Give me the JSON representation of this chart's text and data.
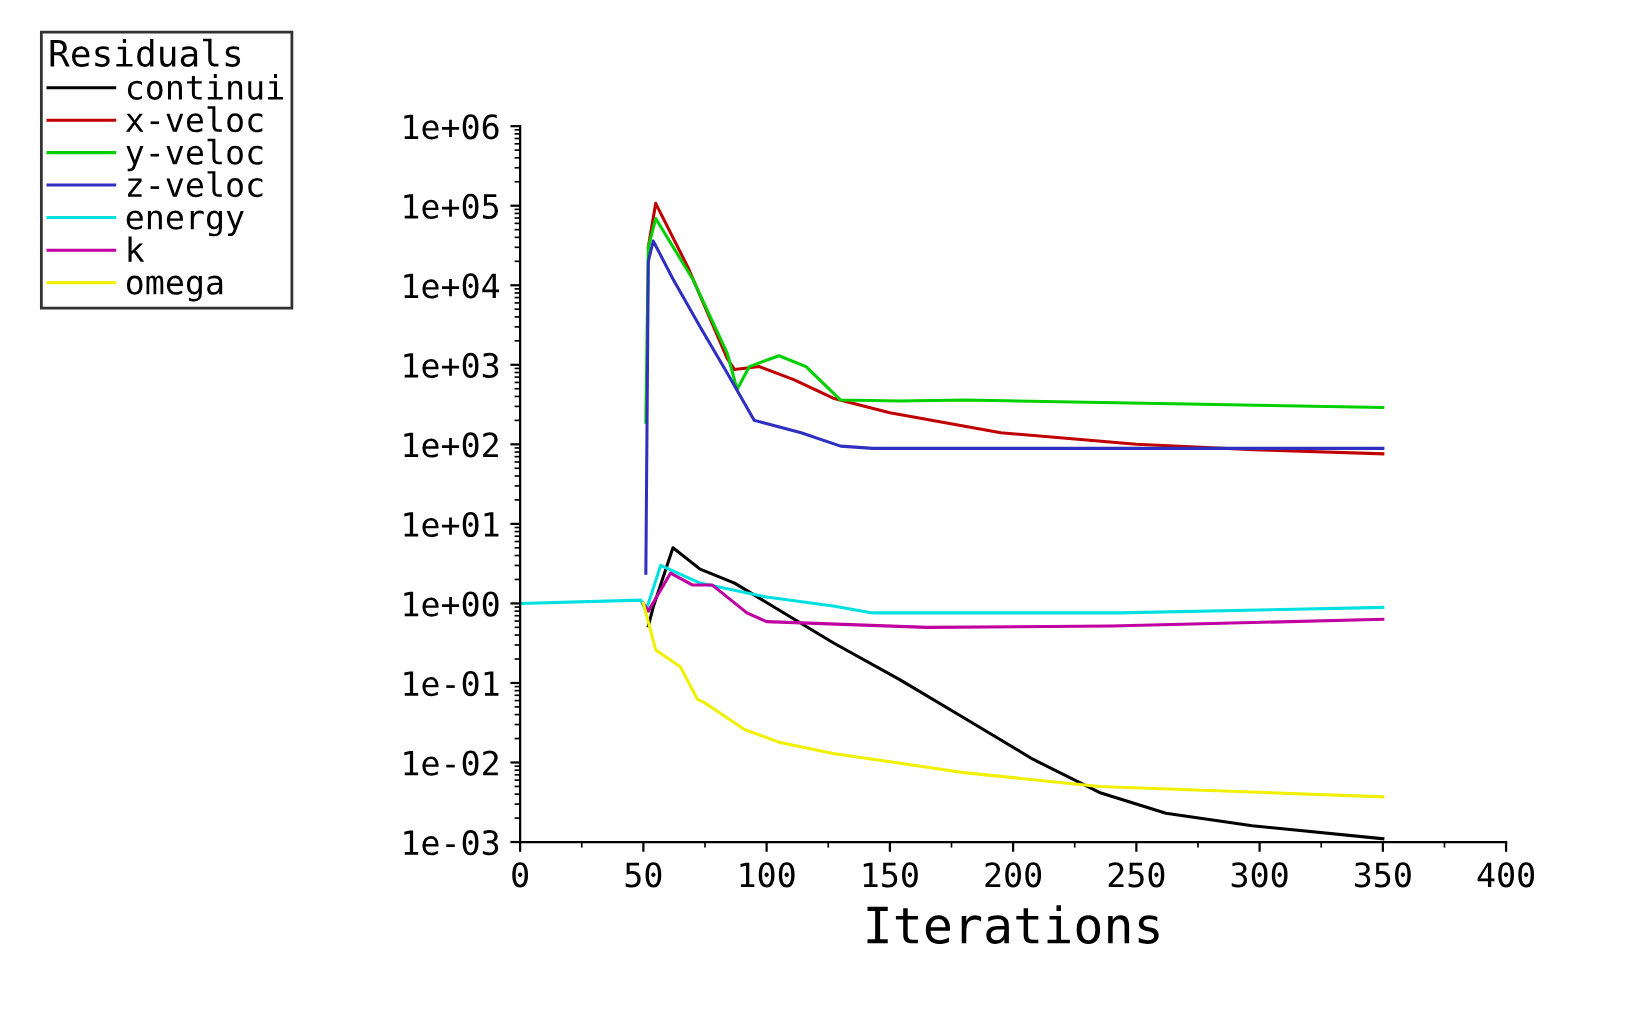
{
  "chart_data": {
    "type": "line",
    "xlabel": "Iterations",
    "legend_title": "Residuals",
    "legend": "top left",
    "grid": false,
    "log": "y",
    "xlim": [
      0,
      400
    ],
    "xticks": [
      0,
      50,
      100,
      150,
      200,
      250,
      300,
      350,
      400
    ],
    "ylim": [
      0.001,
      1000000
    ],
    "yticks": [
      {
        "value": 0.001,
        "label": "1e-03"
      },
      {
        "value": 0.01,
        "label": "1e-02"
      },
      {
        "value": 0.1,
        "label": "1e-01"
      },
      {
        "value": 1,
        "label": "1e+00"
      },
      {
        "value": 10,
        "label": "1e+01"
      },
      {
        "value": 100,
        "label": "1e+02"
      },
      {
        "value": 1000,
        "label": "1e+03"
      },
      {
        "value": 10000,
        "label": "1e+04"
      },
      {
        "value": 100000,
        "label": "1e+05"
      },
      {
        "value": 1000000,
        "label": "1e+06"
      }
    ],
    "series": [
      {
        "name": "continui",
        "color": "#000000",
        "x": [
          52,
          54,
          62,
          73,
          87,
          127,
          154,
          181,
          208,
          235,
          262,
          297,
          350
        ],
        "values": [
          0.52,
          0.9,
          5.0,
          2.7,
          1.8,
          0.32,
          0.11,
          0.035,
          0.011,
          0.0042,
          0.0023,
          0.0016,
          0.0011
        ]
      },
      {
        "name": "x-veloc",
        "color": "#c00000",
        "x": [
          52,
          55,
          68,
          84,
          87,
          97,
          111,
          127,
          150,
          195,
          250,
          300,
          350
        ],
        "values": [
          30000,
          107000,
          17000,
          1200,
          870,
          950,
          650,
          380,
          250,
          140,
          100,
          85,
          76
        ]
      },
      {
        "name": "y-veloc",
        "color": "#00d000",
        "x": [
          51,
          52,
          55,
          70,
          84,
          88,
          93,
          105,
          116,
          130,
          154,
          181,
          350
        ],
        "values": [
          190,
          30000,
          69000,
          12000,
          1400,
          490,
          950,
          1300,
          950,
          360,
          350,
          360,
          290
        ]
      },
      {
        "name": "z-veloc",
        "color": "#3030c0",
        "x": [
          51,
          52,
          54,
          62,
          73,
          84,
          95,
          114,
          130,
          143,
          350
        ],
        "values": [
          2.4,
          20000,
          36000,
          12000,
          3000,
          790,
          200,
          140,
          95,
          89,
          89
        ]
      },
      {
        "name": "energy",
        "color": "#00e0e0",
        "x": [
          0,
          49,
          51,
          57,
          73,
          100,
          127,
          143,
          243,
          350
        ],
        "values": [
          1.0,
          1.1,
          0.8,
          3.0,
          1.8,
          1.2,
          0.93,
          0.76,
          0.76,
          0.89
        ]
      },
      {
        "name": "k",
        "color": "#c000a0",
        "x": [
          50,
          52,
          61,
          70,
          78,
          92,
          100,
          165,
          240,
          350
        ],
        "values": [
          1.0,
          0.8,
          2.4,
          1.7,
          1.7,
          0.76,
          0.59,
          0.5,
          0.52,
          0.63
        ]
      },
      {
        "name": "omega",
        "color": "#f0f000",
        "x": [
          50,
          55,
          65,
          72,
          75,
          91,
          105,
          127,
          181,
          235,
          350
        ],
        "values": [
          1.0,
          0.26,
          0.16,
          0.062,
          0.056,
          0.026,
          0.018,
          0.013,
          0.0074,
          0.005,
          0.0037
        ]
      }
    ]
  }
}
